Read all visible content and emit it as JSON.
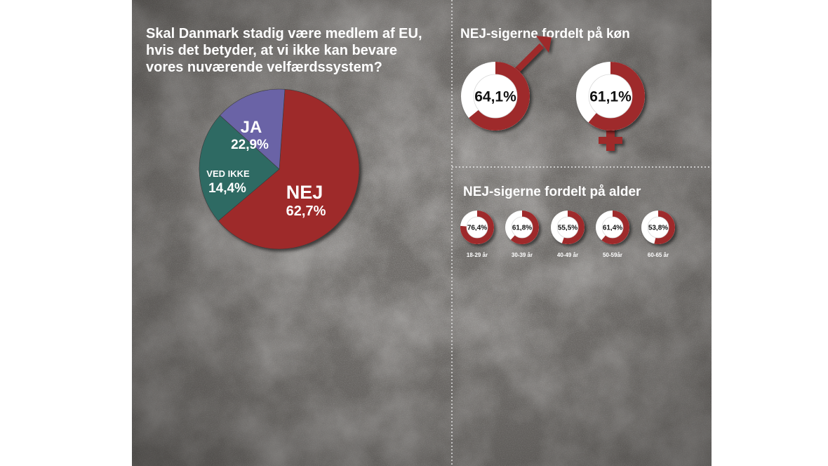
{
  "colors": {
    "nej": "#9e2a2b",
    "ja": "#2d6a63",
    "ved_ikke": "#6b64a6",
    "ring_bg": "#ffffff",
    "background": "#6f6c69"
  },
  "chart_data": [
    {
      "type": "pie",
      "title": "Skal Danmark stadig være medlem af EU, hvis det betyder, at vi ikke kan bevare vores nuværende velfærdssystem?",
      "title_lines": [
        "Skal Danmark stadig være medlem af EU,",
        "hvis det betyder, at vi ikke kan bevare",
        "vores nuværende velfærdssystem?"
      ],
      "categories": [
        "NEJ",
        "JA",
        "VED IKKE"
      ],
      "values": [
        62.7,
        22.9,
        14.4
      ],
      "value_labels": [
        "62,7%",
        "22,9%",
        "14,4%"
      ]
    },
    {
      "type": "pie",
      "title": "NEJ-sigerne fordelt på køn",
      "categories": [
        "Mand",
        "Kvinde"
      ],
      "category_icons": [
        "male-symbol-icon",
        "female-symbol-icon"
      ],
      "values": [
        64.1,
        61.1
      ],
      "value_labels": [
        "64,1%",
        "61,1%"
      ]
    },
    {
      "type": "pie",
      "title": "NEJ-sigerne fordelt på alder",
      "categories": [
        "18-29 år",
        "30-39 år",
        "40-49 år",
        "50-59år",
        "60-65 år"
      ],
      "values": [
        76.4,
        61.8,
        55.5,
        61.4,
        53.8
      ],
      "value_labels": [
        "76,4%",
        "61,8%",
        "55,5%",
        "61,4%",
        "53,8%"
      ]
    }
  ]
}
